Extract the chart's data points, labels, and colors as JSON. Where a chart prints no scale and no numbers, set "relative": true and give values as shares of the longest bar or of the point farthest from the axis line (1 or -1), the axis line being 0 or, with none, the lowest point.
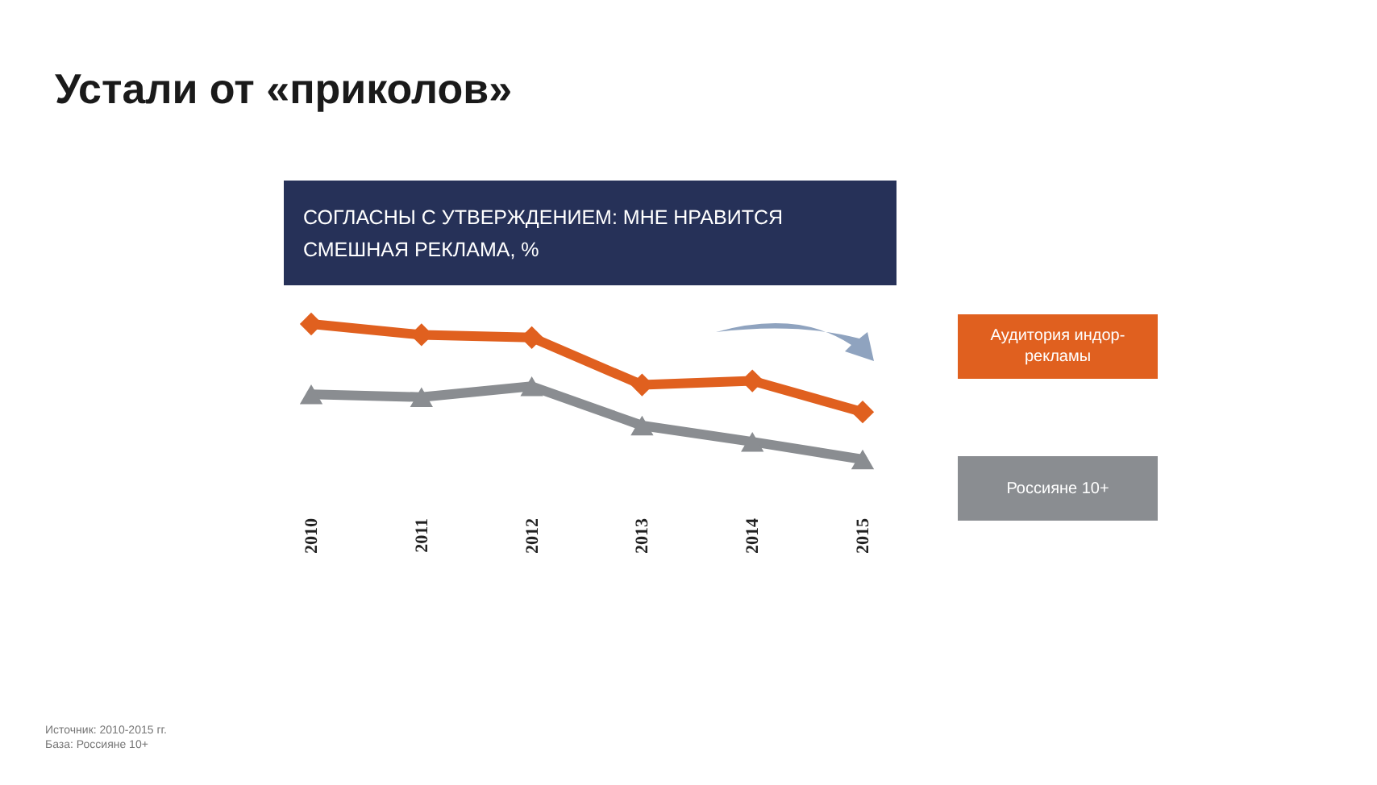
{
  "chart_data": {
    "type": "line",
    "title": "Устали от «приколов»",
    "subtitle": "СОГЛАСНЫ С УТВЕРЖДЕНИЕМ: МНЕ НРАВИТСЯ СМЕШНАЯ РЕКЛАМА, %",
    "categories": [
      "2010",
      "2011",
      "2012",
      "2013",
      "2014",
      "2015"
    ],
    "relative": true,
    "legend": "right",
    "line_style": "solid",
    "series": [
      {
        "name": "Аудитория индор-рекламы",
        "color": "#e0601f",
        "marker": "diamond",
        "values": [
          1,
          0.92,
          0.9,
          0.55,
          0.58,
          0.35
        ]
      },
      {
        "name": "Россияне 10+",
        "color": "#8a8d91",
        "marker": "triangle",
        "values": [
          0.48,
          0.46,
          0.54,
          0.25,
          0.13,
          0
        ]
      }
    ],
    "annotations": [
      "Источник: 2010-2015 гг.",
      "База: Россияне 10+"
    ]
  }
}
